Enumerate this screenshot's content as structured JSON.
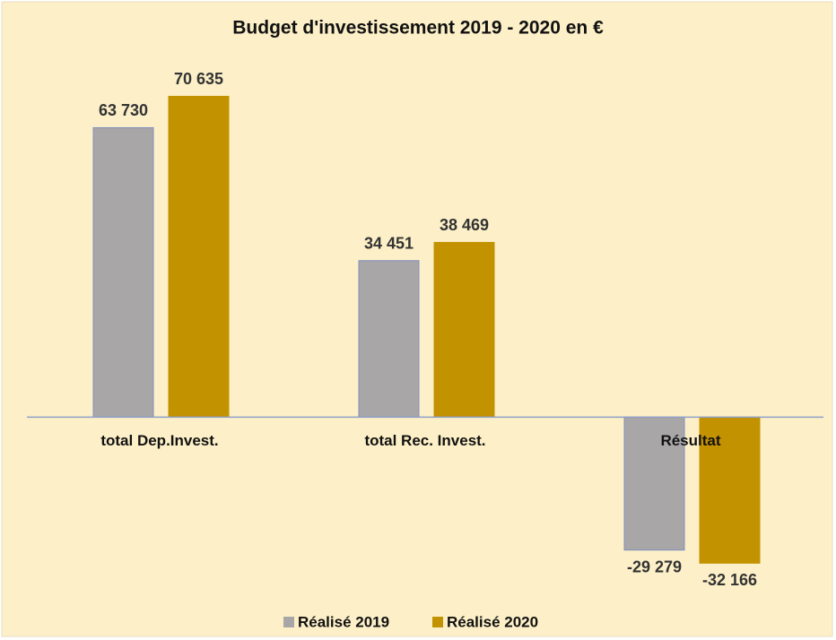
{
  "chart_data": {
    "type": "bar",
    "title": "Budget d'investissement 2019 - 2020 en €",
    "categories": [
      "total Dep.Invest.",
      "total Rec. Invest.",
      "Résultat"
    ],
    "series": [
      {
        "name": "Réalisé 2019",
        "color": "#a9a6a8",
        "values": [
          63730,
          34451,
          -29279
        ],
        "value_labels": [
          "63 730",
          "34 451",
          "-29 279"
        ]
      },
      {
        "name": "Réalisé 2020",
        "color": "#c39200",
        "values": [
          70635,
          38469,
          -32166
        ],
        "value_labels": [
          "70 635",
          "38 469",
          "-32 166"
        ]
      }
    ],
    "ylim": [
      -40000,
      80000
    ],
    "legend": "bottom"
  }
}
